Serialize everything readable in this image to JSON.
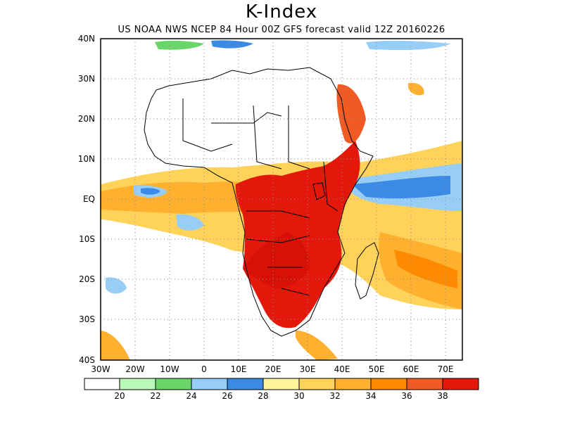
{
  "title": "K-Index",
  "subtitle": "US NOAA NWS NCEP 84 Hour 00Z GFS forecast valid 12Z 20160226",
  "map": {
    "lon_range": [
      -30,
      75
    ],
    "lat_range": [
      -40,
      40
    ],
    "lat_ticks": [
      "40N",
      "30N",
      "20N",
      "10N",
      "EQ",
      "10S",
      "20S",
      "30S",
      "40S"
    ],
    "lon_ticks": [
      "30W",
      "20W",
      "10W",
      "0",
      "10E",
      "20E",
      "30E",
      "40E",
      "50E",
      "60E",
      "70E"
    ],
    "gridlines": true
  },
  "colorbar": {
    "labels": [
      "20",
      "22",
      "24",
      "26",
      "28",
      "30",
      "32",
      "34",
      "36",
      "38"
    ],
    "colors": [
      "#ffffff",
      "#b8f8b8",
      "#6ad66a",
      "#98cdf6",
      "#3a8ae6",
      "#fff59c",
      "#ffd25a",
      "#ffb02e",
      "#ff8a00",
      "#f15a22",
      "#e3170a"
    ]
  }
}
